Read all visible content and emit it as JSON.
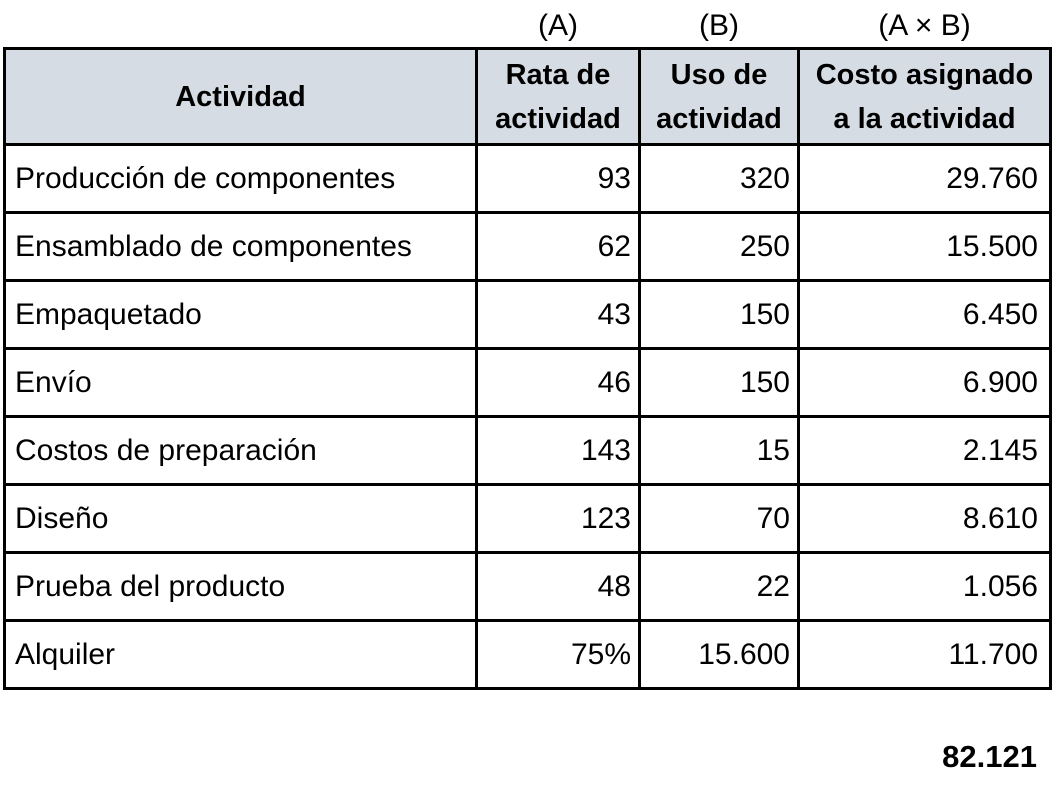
{
  "colors": {
    "page_bg": "#FFFFFF",
    "header_bg": "#D6DCE4",
    "border": "#000000",
    "text": "#000000"
  },
  "top_labels": {
    "a": "(A)",
    "b": "(B)",
    "axb": "(A × B)"
  },
  "header": {
    "activity": "Actividad",
    "rate": [
      "Rata de",
      "actividad"
    ],
    "usage": [
      "Uso de",
      "actividad"
    ],
    "cost": [
      "Costo asignado",
      "a la actividad"
    ]
  },
  "chart_data": {
    "type": "table",
    "column_group_labels": [
      "(A)",
      "(B)",
      "(A × B)"
    ],
    "columns": [
      "Actividad",
      "Rata de actividad",
      "Uso de actividad",
      "Costo asignado a la actividad"
    ],
    "rows": [
      {
        "activity": "Producción de componentes",
        "rate": "93",
        "usage": "320",
        "cost": "29.760"
      },
      {
        "activity": "Ensamblado de componentes",
        "rate": "62",
        "usage": "250",
        "cost": "15.500"
      },
      {
        "activity": "Empaquetado",
        "rate": "43",
        "usage": "150",
        "cost": "6.450"
      },
      {
        "activity": "Envío",
        "rate": "46",
        "usage": "150",
        "cost": "6.900"
      },
      {
        "activity": "Costos de preparación",
        "rate": "143",
        "usage": "15",
        "cost": "2.145"
      },
      {
        "activity": "Diseño",
        "rate": "123",
        "usage": "70",
        "cost": "8.610"
      },
      {
        "activity": "Prueba del producto",
        "rate": "48",
        "usage": "22",
        "cost": "1.056"
      },
      {
        "activity": "Alquiler",
        "rate": "75%",
        "usage": "15.600",
        "cost": "11.700"
      }
    ],
    "total": "82.121"
  }
}
